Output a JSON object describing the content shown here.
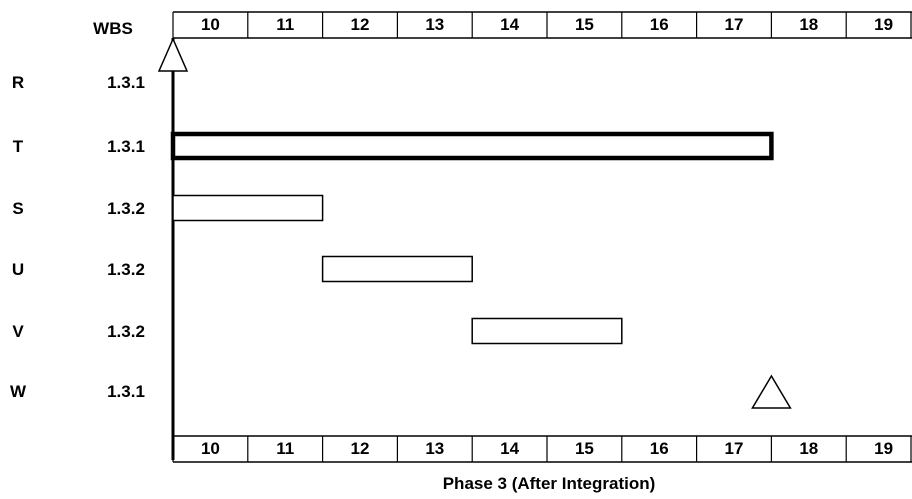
{
  "header": {
    "wbs_label": "WBS"
  },
  "time_axis": {
    "periods": [
      "10",
      "11",
      "12",
      "13",
      "14",
      "15",
      "16",
      "17",
      "18",
      "19"
    ],
    "caption": "Phase 3 (After Integration)"
  },
  "chart_data": {
    "type": "gantt",
    "x_range": [
      10,
      20
    ],
    "tasks": [
      {
        "id": "R",
        "wbs": "1.3.1",
        "kind": "milestone",
        "at": 10.0
      },
      {
        "id": "T",
        "wbs": "1.3.1",
        "kind": "bar",
        "start": 10.0,
        "end": 18.0,
        "emphasis": true
      },
      {
        "id": "S",
        "wbs": "1.3.2",
        "kind": "bar",
        "start": 10.0,
        "end": 12.0
      },
      {
        "id": "U",
        "wbs": "1.3.2",
        "kind": "bar",
        "start": 12.0,
        "end": 14.0
      },
      {
        "id": "V",
        "wbs": "1.3.2",
        "kind": "bar",
        "start": 14.0,
        "end": 16.0
      },
      {
        "id": "W",
        "wbs": "1.3.1",
        "kind": "milestone",
        "at": 18.0
      }
    ]
  },
  "colors": {
    "line": "#000000",
    "background": "#ffffff"
  }
}
